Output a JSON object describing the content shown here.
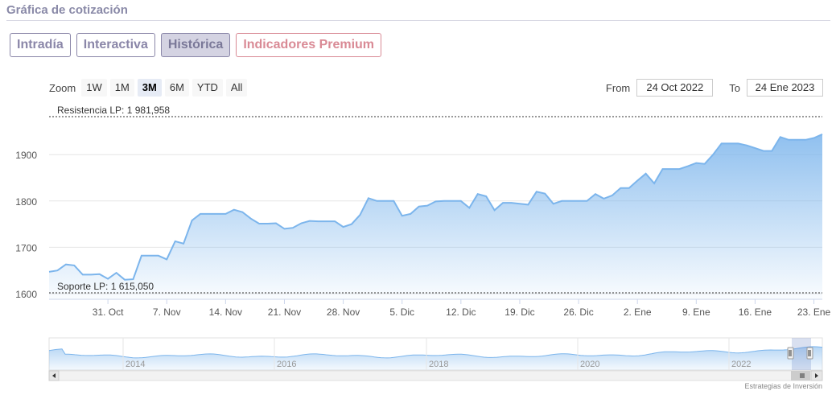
{
  "header": {
    "title": "Gráfica de cotización"
  },
  "tabs": [
    {
      "label": "Intradía",
      "active": false,
      "premium": false
    },
    {
      "label": "Interactiva",
      "active": false,
      "premium": false
    },
    {
      "label": "Histórica",
      "active": true,
      "premium": false
    },
    {
      "label": "Indicadores Premium",
      "active": false,
      "premium": true
    }
  ],
  "zoom": {
    "label": "Zoom",
    "buttons": [
      "1W",
      "1M",
      "3M",
      "6M",
      "YTD",
      "All"
    ],
    "selected": "3M"
  },
  "range": {
    "from_label": "From",
    "from_value": "24 Oct 2022",
    "to_label": "To",
    "to_value": "24 Ene 2023"
  },
  "credit": "Estrategias de Inversión",
  "colors": {
    "line": "#7cb5ec",
    "fill_top": "#7cb5ec",
    "accent_tab": "#8a86a8",
    "premium_tab": "#d98a95"
  },
  "chart_data": {
    "type": "area",
    "x_tick_labels": [
      "31. Oct",
      "7. Nov",
      "14. Nov",
      "21. Nov",
      "28. Nov",
      "5. Dic",
      "12. Dic",
      "19. Dic",
      "26. Dic",
      "2. Ene",
      "9. Ene",
      "16. Ene",
      "23. Ene"
    ],
    "ylim": [
      1600,
      1981.958
    ],
    "yticks": [
      1600,
      1700,
      1800,
      1900
    ],
    "grid": true,
    "plot_lines": [
      {
        "label": "Resistencia LP: 1 981,958",
        "value": 1981.958
      },
      {
        "label": "Soporte LP: 1 615,050",
        "value": 1615.05
      }
    ],
    "series": [
      {
        "day_offsets": [
          0,
          1,
          2,
          3,
          4,
          5,
          6,
          7,
          8,
          9,
          10,
          11,
          12,
          13,
          14,
          15,
          16,
          17,
          18,
          19,
          20,
          21,
          22,
          23,
          24,
          25,
          26,
          27,
          28,
          29,
          30,
          31,
          32,
          33,
          34,
          35,
          36,
          37,
          38,
          39,
          40,
          41,
          42,
          43,
          44,
          45,
          46,
          47,
          48,
          49,
          50,
          51,
          52,
          53,
          54,
          55,
          56,
          57,
          58,
          59,
          60,
          61,
          62,
          63,
          64,
          65,
          66,
          67,
          68,
          69,
          70,
          71,
          72,
          73,
          74,
          75,
          76,
          77,
          78,
          79,
          80,
          81,
          82,
          83,
          84,
          85,
          86,
          87,
          88,
          89,
          90,
          91,
          92
        ],
        "values": [
          1647,
          1650,
          1663,
          1661,
          1641,
          1641,
          1642,
          1632,
          1645,
          1630,
          1631,
          1682,
          1682,
          1682,
          1674,
          1713,
          1708,
          1758,
          1772,
          1772,
          1772,
          1772,
          1781,
          1776,
          1762,
          1751,
          1751,
          1752,
          1740,
          1742,
          1752,
          1757,
          1756,
          1756,
          1756,
          1744,
          1750,
          1770,
          1806,
          1800,
          1800,
          1800,
          1768,
          1772,
          1788,
          1790,
          1799,
          1800,
          1800,
          1800,
          1785,
          1815,
          1810,
          1780,
          1796,
          1796,
          1794,
          1792,
          1820,
          1816,
          1794,
          1800,
          1800,
          1800,
          1800,
          1815,
          1805,
          1812,
          1828,
          1828,
          1844,
          1859,
          1838,
          1869,
          1869,
          1869,
          1875,
          1882,
          1880,
          1900,
          1924,
          1924,
          1924,
          1920,
          1914,
          1908,
          1908,
          1938,
          1932,
          1932,
          1932,
          1936,
          1944
        ]
      }
    ],
    "navigator": {
      "year_labels": [
        "2014",
        "2016",
        "2018",
        "2020",
        "2022"
      ]
    }
  }
}
